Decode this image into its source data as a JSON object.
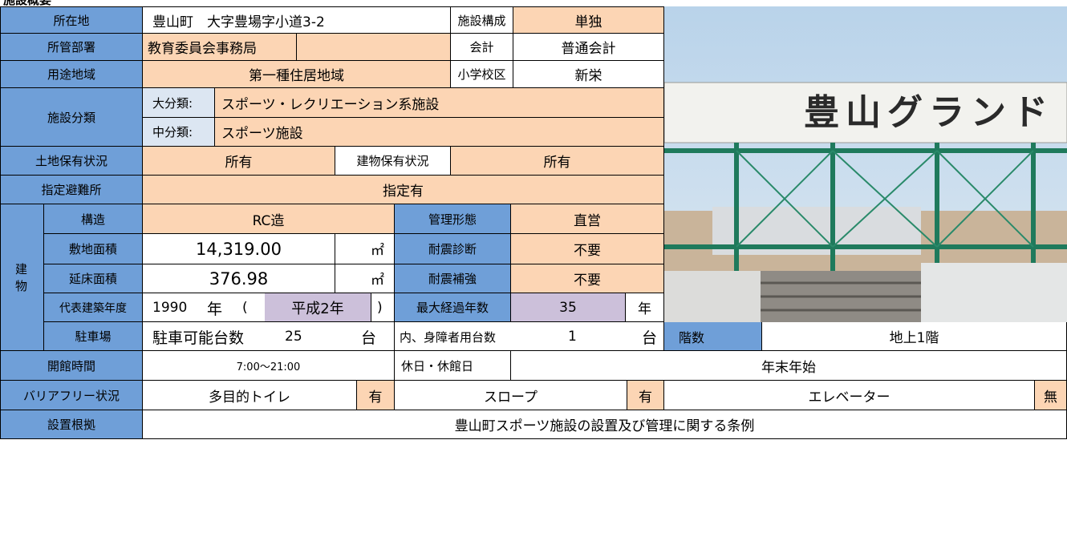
{
  "header": {
    "title": "施設概要"
  },
  "location": {
    "label": "所在地",
    "value": "豊山町　大字豊場字小道3-2"
  },
  "facility_composition": {
    "label": "施設構成",
    "value": "単独"
  },
  "department": {
    "label": "所管部署",
    "value": "教育委員会事務局"
  },
  "account": {
    "label": "会計",
    "value": "普通会計"
  },
  "zoning": {
    "label": "用途地域",
    "value": "第一種住居地域"
  },
  "school_district": {
    "label": "小学校区",
    "value": "新栄"
  },
  "classification": {
    "label": "施設分類",
    "major_label": "大分類:",
    "major": "スポーツ・レクリエーション系施設",
    "middle_label": "中分類:",
    "middle": "スポーツ施設"
  },
  "land_ownership": {
    "label": "土地保有状況",
    "value": "所有"
  },
  "building_ownership": {
    "label": "建物保有状況",
    "value": "所有"
  },
  "evacuation": {
    "label": "指定避難所",
    "value": "指定有"
  },
  "building": {
    "label": "建物",
    "structure": {
      "label": "構造",
      "value": "RC造"
    },
    "management": {
      "label": "管理形態",
      "value": "直営"
    },
    "site_area": {
      "label": "敷地面積",
      "value": "14,319.00",
      "unit": "㎡"
    },
    "seismic_diagnosis": {
      "label": "耐震診断",
      "value": "不要"
    },
    "floor_area": {
      "label": "延床面積",
      "value": "376.98",
      "unit": "㎡"
    },
    "seismic_reinforcement": {
      "label": "耐震補強",
      "value": "不要"
    },
    "year": {
      "label": "代表建築年度",
      "value": "1990",
      "unit": "年",
      "open": "(",
      "era": "平成2年",
      "close": ")"
    },
    "max_age": {
      "label": "最大経過年数",
      "value": "35",
      "unit": "年"
    },
    "parking": {
      "label": "駐車場",
      "capacity_label": "駐車可能台数",
      "capacity": "25",
      "capacity_unit": "台",
      "disabled_label": "内、身障者用台数",
      "disabled": "1",
      "disabled_unit": "台"
    },
    "floors": {
      "label": "階数",
      "value": "地上1階"
    }
  },
  "hours": {
    "label": "開館時間",
    "value": "7:00～21:00"
  },
  "closed": {
    "label": "休日・休館日",
    "value": "年末年始"
  },
  "barrier_free": {
    "label": "バリアフリー状況",
    "toilet": "多目的トイレ",
    "toilet_status": "有",
    "slope": "スロープ",
    "slope_status": "有",
    "elevator": "エレベーター",
    "elevator_status": "無"
  },
  "basis": {
    "label": "設置根拠",
    "value": "豊山町スポーツ施設の設置及び管理に関する条例"
  },
  "photo": {
    "sign_text": "豊山グランド"
  }
}
